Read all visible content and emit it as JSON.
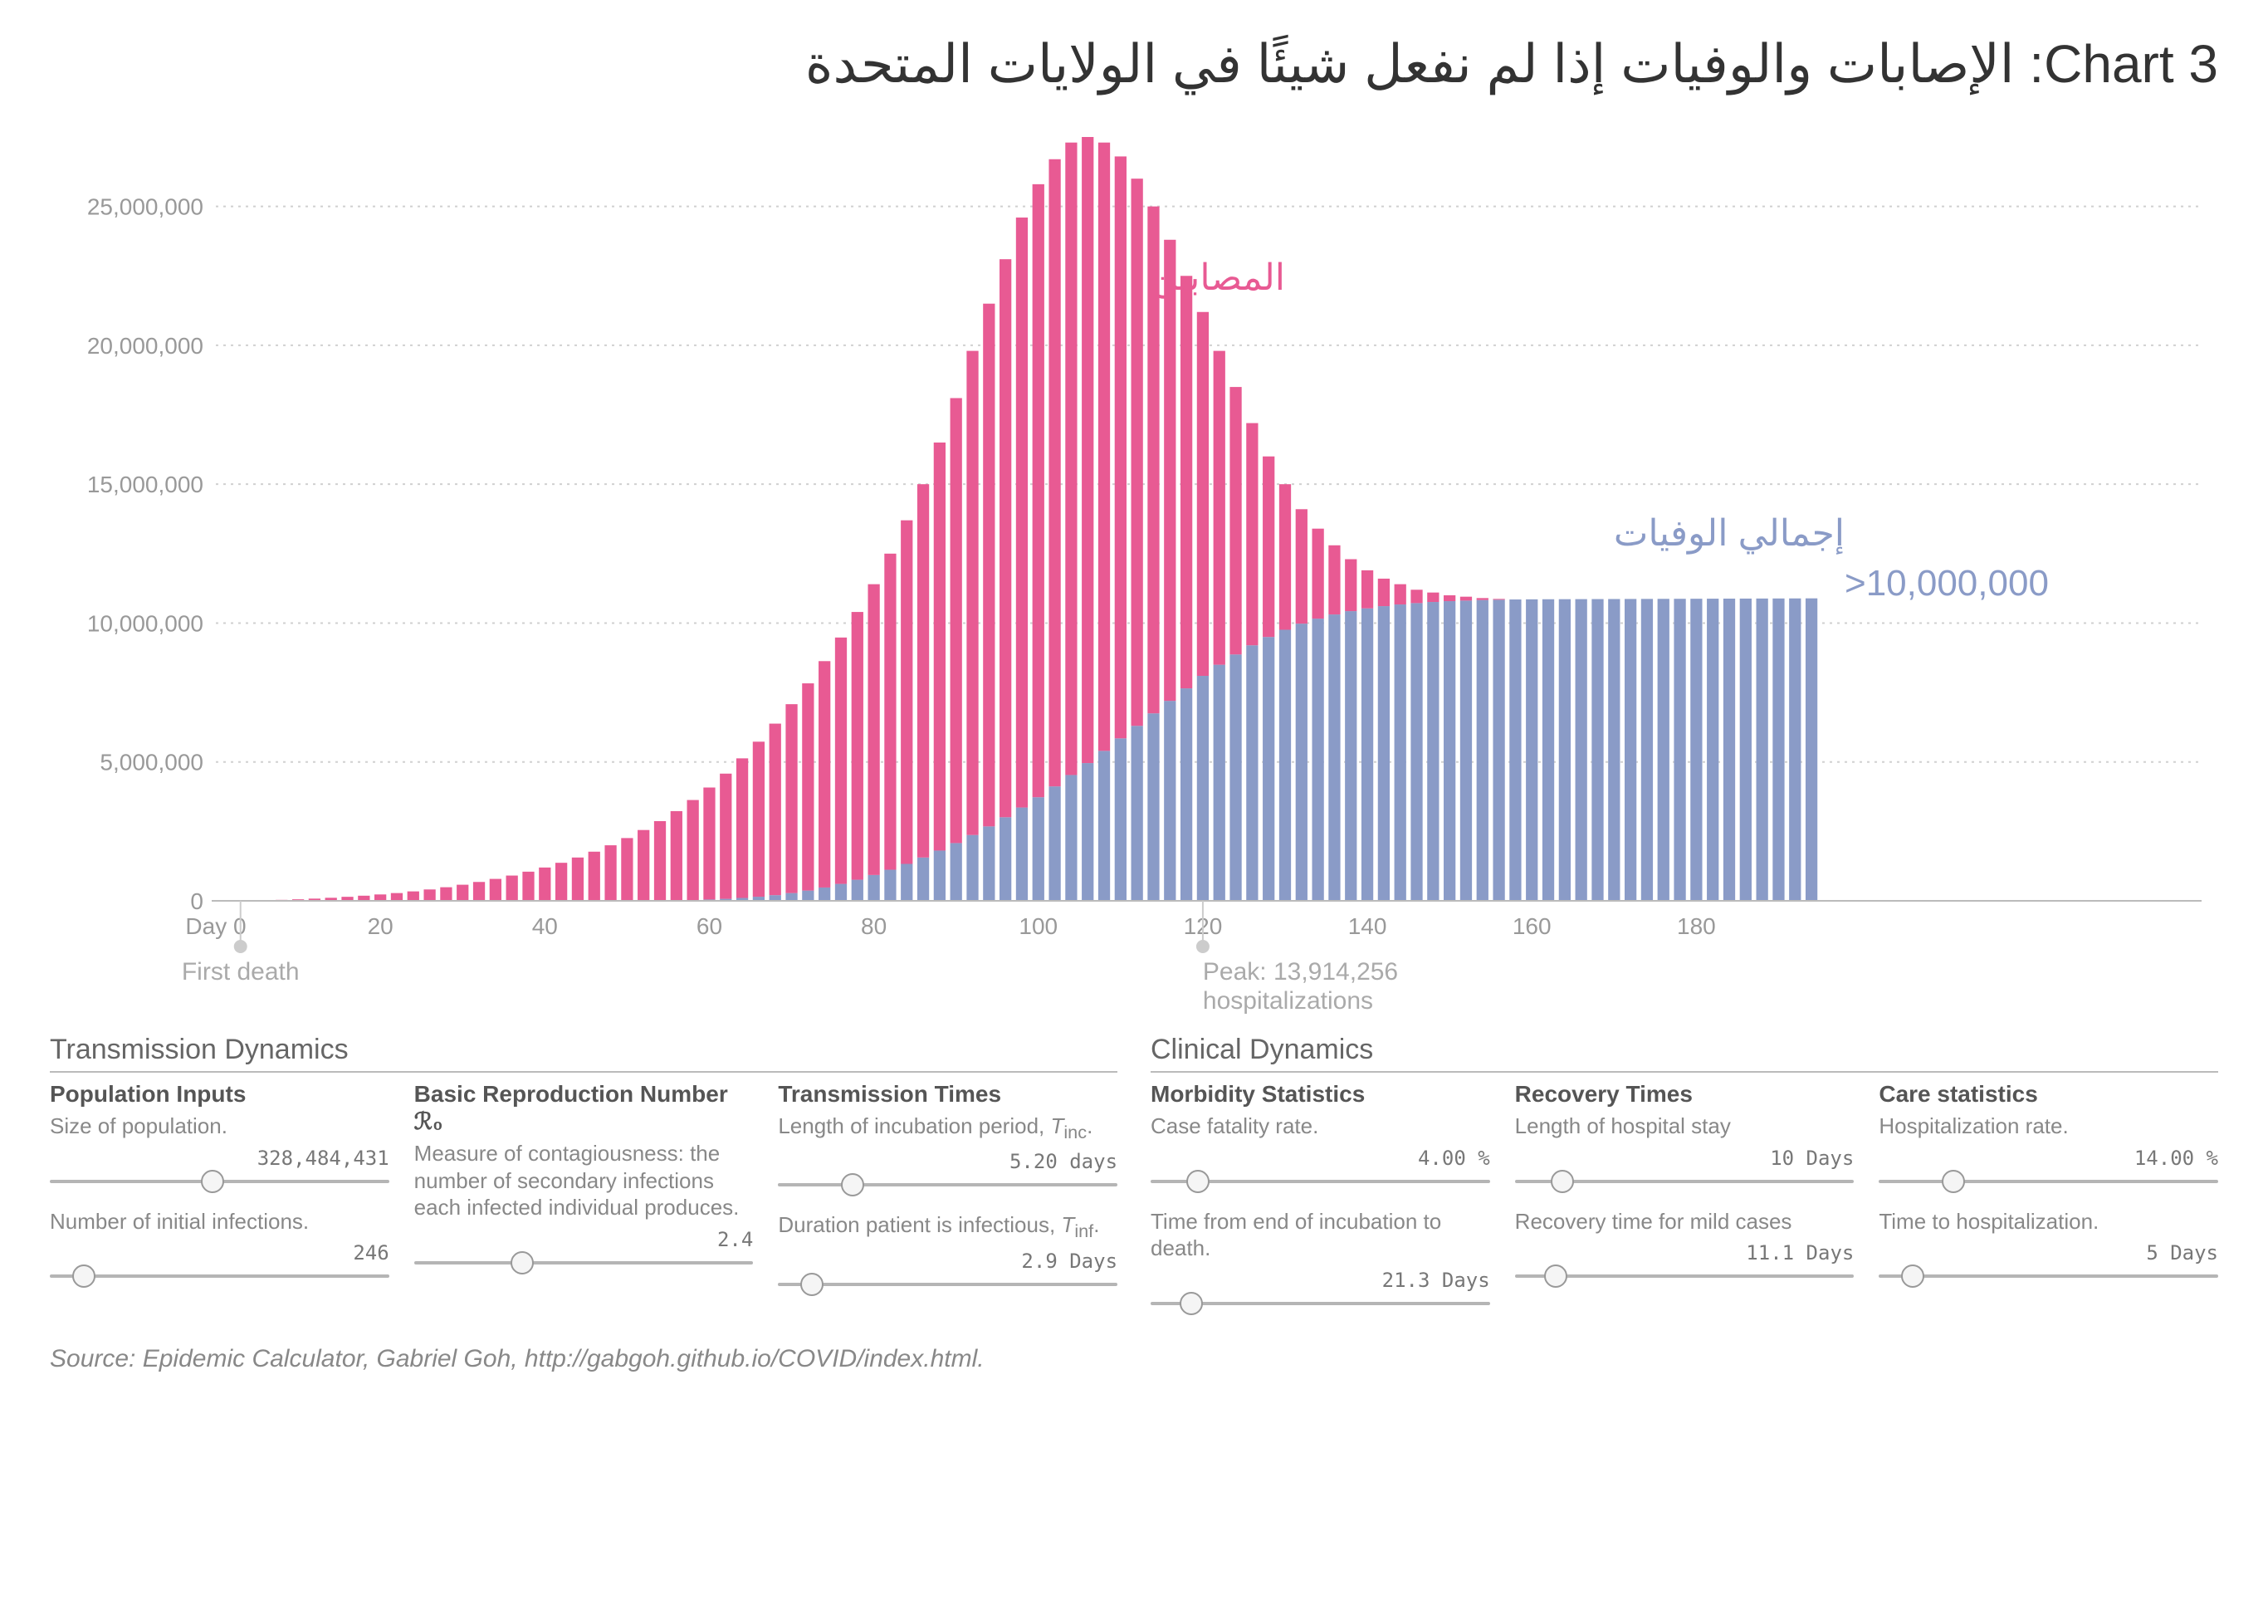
{
  "title": "Chart 3: الإصابات والوفيات إذا لم نفعل شيئًا في الولايات المتحدة",
  "source": "Source: Epidemic Calculator, Gabriel Goh, http://gabgoh.github.io/COVID/index.html.",
  "chart": {
    "type": "bar",
    "background_color": "#ffffff",
    "grid_color": "#d0d0d0",
    "infected_color": "#e85a93",
    "infected_color_top": "#f7b6d2",
    "deaths_color": "#8a9bc7",
    "xlim": [
      0,
      195
    ],
    "ylim": [
      0,
      27500000
    ],
    "yticks": [
      0,
      5000000,
      10000000,
      15000000,
      20000000,
      25000000
    ],
    "ytick_labels": [
      "0",
      "5,000,000",
      "10,000,000",
      "15,000,000",
      "20,000,000",
      "25,000,000"
    ],
    "xticks": [
      0,
      20,
      40,
      60,
      80,
      100,
      120,
      140,
      160,
      180
    ],
    "xtick_labels": [
      "Day 0",
      "20",
      "40",
      "60",
      "80",
      "100",
      "120",
      "140",
      "160",
      "180"
    ],
    "bar_step": 2,
    "bar_width_ratio": 0.72,
    "tick_fontsize": 28,
    "infected_label": "المصابين",
    "deaths_label": "إجمالي الوفيات",
    "deaths_label_value": ">10,000,000",
    "series": {
      "infected": [
        0,
        5000,
        10000,
        20000,
        35000,
        55000,
        80000,
        110000,
        145000,
        185000,
        230000,
        280000,
        340000,
        410000,
        490000,
        580000,
        680000,
        790000,
        910000,
        1050000,
        1200000,
        1370000,
        1560000,
        1770000,
        2000000,
        2260000,
        2550000,
        2870000,
        3230000,
        3630000,
        4080000,
        4580000,
        5130000,
        5730000,
        6380000,
        7080000,
        7830000,
        8630000,
        9480000,
        10400000,
        11400000,
        12500000,
        13700000,
        15000000,
        16500000,
        18100000,
        19800000,
        21500000,
        23100000,
        24600000,
        25800000,
        26700000,
        27300000,
        27500000,
        27300000,
        26800000,
        26000000,
        25000000,
        23800000,
        22500000,
        21200000,
        19800000,
        18500000,
        17200000,
        16000000,
        15000000,
        14100000,
        13400000,
        12800000,
        12300000,
        11900000,
        11600000,
        11400000,
        11200000,
        11100000,
        11000000,
        10950000,
        10900000,
        10870000,
        10850000,
        10830000,
        10820000,
        10810000,
        10805000,
        10800000,
        10800000,
        10800000,
        10800000,
        10800000,
        10800000,
        10800000,
        10800000,
        10800000,
        10800000,
        10800000,
        10800000,
        10800000,
        10800000
      ],
      "deaths": [
        0,
        0,
        0,
        0,
        0,
        0,
        0,
        0,
        0,
        0,
        0,
        0,
        0,
        0,
        0,
        0,
        0,
        0,
        0,
        0,
        0,
        0,
        0,
        0,
        0,
        0,
        5000,
        10000,
        18000,
        30000,
        48000,
        72000,
        105000,
        148000,
        205000,
        280000,
        370000,
        480000,
        610000,
        760000,
        930000,
        1120000,
        1330000,
        1560000,
        1810000,
        2080000,
        2370000,
        2680000,
        3010000,
        3360000,
        3730000,
        4120000,
        4530000,
        4960000,
        5400000,
        5850000,
        6300000,
        6750000,
        7200000,
        7650000,
        8100000,
        8500000,
        8870000,
        9200000,
        9500000,
        9760000,
        9980000,
        10160000,
        10310000,
        10430000,
        10530000,
        10610000,
        10670000,
        10720000,
        10760000,
        10790000,
        10810000,
        10830000,
        10840000,
        10850000,
        10855000,
        10858000,
        10860000,
        10862000,
        10864000,
        10866000,
        10868000,
        10870000,
        10872000,
        10874000,
        10876000,
        10878000,
        10880000,
        10882000,
        10884000,
        10886000,
        10888000,
        10890000
      ]
    },
    "markers": {
      "first_death": {
        "x": 3,
        "label": "First death"
      },
      "peak": {
        "x": 120,
        "label_line1": "Peak: 13,914,256",
        "label_line2": "hospitalizations"
      }
    }
  },
  "controls": {
    "transmission": {
      "title": "Transmission Dynamics",
      "columns": [
        {
          "title": "Population Inputs",
          "items": [
            {
              "desc": "Size of population.",
              "value": "328,484,431",
              "thumb_pct": 48
            },
            {
              "desc": "Number of initial infections.",
              "value": "246",
              "thumb_pct": 10
            }
          ]
        },
        {
          "title_html": "Basic Reproduction Number ℛ₀",
          "desc": "Measure of contagiousness: the number of secondary infections each infected individual produces.",
          "items": [
            {
              "desc": "",
              "value": "2.4",
              "thumb_pct": 32
            }
          ]
        },
        {
          "title": "Transmission Times",
          "items": [
            {
              "desc_html": "Length of incubation period, <span class='sub'>T</span><sub>inc</sub>.",
              "value": "5.20 days",
              "thumb_pct": 22
            },
            {
              "desc_html": "Duration patient is infectious, <span class='sub'>T</span><sub>inf</sub>.",
              "value": "2.9 Days",
              "thumb_pct": 10
            }
          ]
        }
      ]
    },
    "clinical": {
      "title": "Clinical Dynamics",
      "columns": [
        {
          "title": "Morbidity Statistics",
          "items": [
            {
              "desc": "Case fatality rate.",
              "value": "4.00 %",
              "thumb_pct": 14
            },
            {
              "desc": "Time from end of incubation to death.",
              "value": "21.3 Days",
              "thumb_pct": 12
            }
          ]
        },
        {
          "title": "Recovery Times",
          "items": [
            {
              "desc": "Length of hospital stay",
              "value": "10 Days",
              "thumb_pct": 14
            },
            {
              "desc": "Recovery time for mild cases",
              "value": "11.1 Days",
              "thumb_pct": 12
            }
          ]
        },
        {
          "title": "Care statistics",
          "items": [
            {
              "desc": "Hospitalization rate.",
              "value": "14.00 %",
              "thumb_pct": 22
            },
            {
              "desc": "Time to hospitalization.",
              "value": "5 Days",
              "thumb_pct": 10
            }
          ]
        }
      ]
    }
  }
}
